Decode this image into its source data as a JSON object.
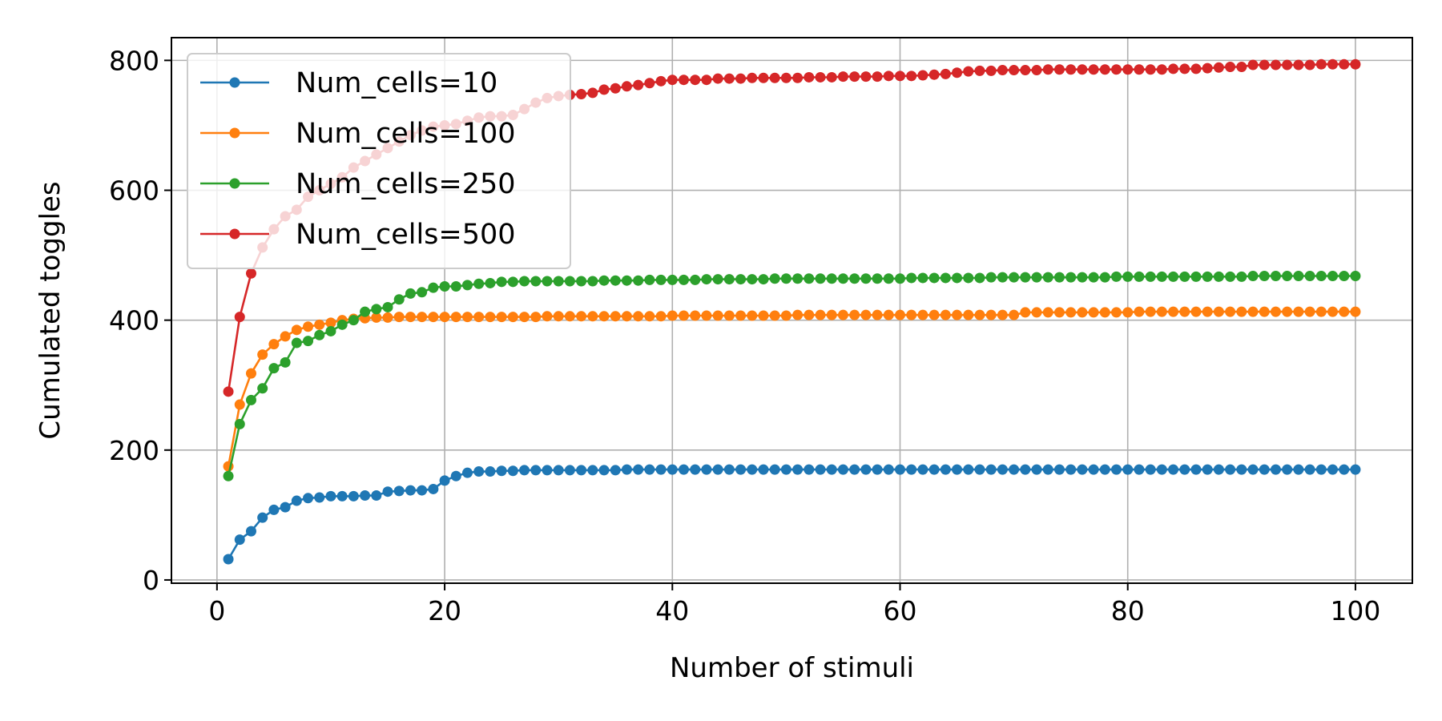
{
  "chart_data": {
    "type": "line",
    "title": "",
    "xlabel": "Number of stimuli",
    "ylabel": "Cumulated toggles",
    "xlim": [
      -4,
      105
    ],
    "ylim": [
      -5,
      835
    ],
    "xticks": [
      0,
      20,
      40,
      60,
      80,
      100
    ],
    "yticks": [
      0,
      200,
      400,
      600,
      800
    ],
    "grid": true,
    "legend_position": "upper-left",
    "markers": true,
    "colors": [
      "#1f77b4",
      "#ff7f0e",
      "#2ca02c",
      "#d62728"
    ],
    "x": [
      1,
      2,
      3,
      4,
      5,
      6,
      7,
      8,
      9,
      10,
      11,
      12,
      13,
      14,
      15,
      16,
      17,
      18,
      19,
      20,
      21,
      22,
      23,
      24,
      25,
      26,
      27,
      28,
      29,
      30,
      31,
      32,
      33,
      34,
      35,
      36,
      37,
      38,
      39,
      40,
      41,
      42,
      43,
      44,
      45,
      46,
      47,
      48,
      49,
      50,
      51,
      52,
      53,
      54,
      55,
      56,
      57,
      58,
      59,
      60,
      61,
      62,
      63,
      64,
      65,
      66,
      67,
      68,
      69,
      70,
      71,
      72,
      73,
      74,
      75,
      76,
      77,
      78,
      79,
      80,
      81,
      82,
      83,
      84,
      85,
      86,
      87,
      88,
      89,
      90,
      91,
      92,
      93,
      94,
      95,
      96,
      97,
      98,
      99,
      100
    ],
    "series": [
      {
        "name": "Num_cells=10",
        "values": [
          32,
          62,
          75,
          96,
          108,
          112,
          122,
          126,
          127,
          129,
          129,
          129,
          130,
          130,
          136,
          137,
          138,
          138,
          140,
          153,
          160,
          165,
          167,
          167,
          168,
          168,
          169,
          169,
          169,
          169,
          169,
          169,
          169,
          169,
          169,
          170,
          170,
          170,
          170,
          170,
          170,
          170,
          170,
          170,
          170,
          170,
          170,
          170,
          170,
          170,
          170,
          170,
          170,
          170,
          170,
          170,
          170,
          170,
          170,
          170,
          170,
          170,
          170,
          170,
          170,
          170,
          170,
          170,
          170,
          170,
          170,
          170,
          170,
          170,
          170,
          170,
          170,
          170,
          170,
          170,
          170,
          170,
          170,
          170,
          170,
          170,
          170,
          170,
          170,
          170,
          170,
          170,
          170,
          170,
          170,
          170,
          170,
          170,
          170,
          170
        ]
      },
      {
        "name": "Num_cells=100",
        "values": [
          175,
          270,
          318,
          347,
          363,
          375,
          385,
          390,
          393,
          396,
          400,
          402,
          403,
          404,
          404,
          405,
          405,
          405,
          405,
          405,
          405,
          405,
          405,
          405,
          405,
          405,
          405,
          405,
          406,
          406,
          406,
          406,
          406,
          406,
          406,
          406,
          406,
          406,
          406,
          407,
          407,
          407,
          407,
          407,
          407,
          407,
          407,
          407,
          407,
          407,
          408,
          408,
          408,
          408,
          408,
          408,
          408,
          408,
          408,
          408,
          408,
          408,
          408,
          408,
          408,
          408,
          408,
          408,
          408,
          408,
          412,
          412,
          412,
          412,
          412,
          412,
          412,
          412,
          412,
          412,
          413,
          413,
          413,
          413,
          413,
          413,
          413,
          413,
          413,
          413,
          413,
          413,
          413,
          413,
          413,
          413,
          413,
          413,
          413,
          413
        ]
      },
      {
        "name": "Num_cells=250",
        "values": [
          160,
          240,
          277,
          295,
          326,
          335,
          365,
          368,
          377,
          383,
          393,
          400,
          413,
          417,
          420,
          432,
          441,
          443,
          450,
          452,
          452,
          454,
          456,
          457,
          459,
          459,
          460,
          460,
          460,
          460,
          460,
          460,
          460,
          461,
          461,
          461,
          461,
          462,
          462,
          462,
          462,
          462,
          463,
          463,
          463,
          463,
          463,
          463,
          464,
          464,
          464,
          464,
          464,
          464,
          464,
          464,
          464,
          464,
          464,
          464,
          465,
          465,
          465,
          465,
          465,
          465,
          465,
          466,
          466,
          466,
          466,
          466,
          466,
          466,
          466,
          466,
          466,
          466,
          467,
          467,
          467,
          467,
          467,
          467,
          467,
          467,
          467,
          467,
          467,
          467,
          468,
          468,
          468,
          468,
          468,
          468,
          468,
          468,
          468,
          468
        ]
      },
      {
        "name": "Num_cells=500",
        "values": [
          290,
          405,
          472,
          512,
          540,
          560,
          570,
          590,
          600,
          610,
          620,
          635,
          645,
          655,
          665,
          675,
          685,
          692,
          698,
          700,
          702,
          707,
          712,
          714,
          714,
          716,
          725,
          735,
          742,
          745,
          747,
          748,
          750,
          755,
          757,
          760,
          762,
          765,
          768,
          770,
          770,
          770,
          770,
          772,
          772,
          772,
          773,
          773,
          773,
          773,
          773,
          774,
          774,
          774,
          775,
          775,
          775,
          775,
          776,
          776,
          776,
          777,
          778,
          779,
          781,
          783,
          784,
          784,
          785,
          785,
          785,
          785,
          786,
          786,
          786,
          786,
          786,
          786,
          786,
          786,
          786,
          786,
          786,
          787,
          787,
          787,
          788,
          789,
          790,
          790,
          793,
          793,
          793,
          793,
          793,
          793,
          794,
          794,
          794,
          794
        ]
      }
    ]
  }
}
